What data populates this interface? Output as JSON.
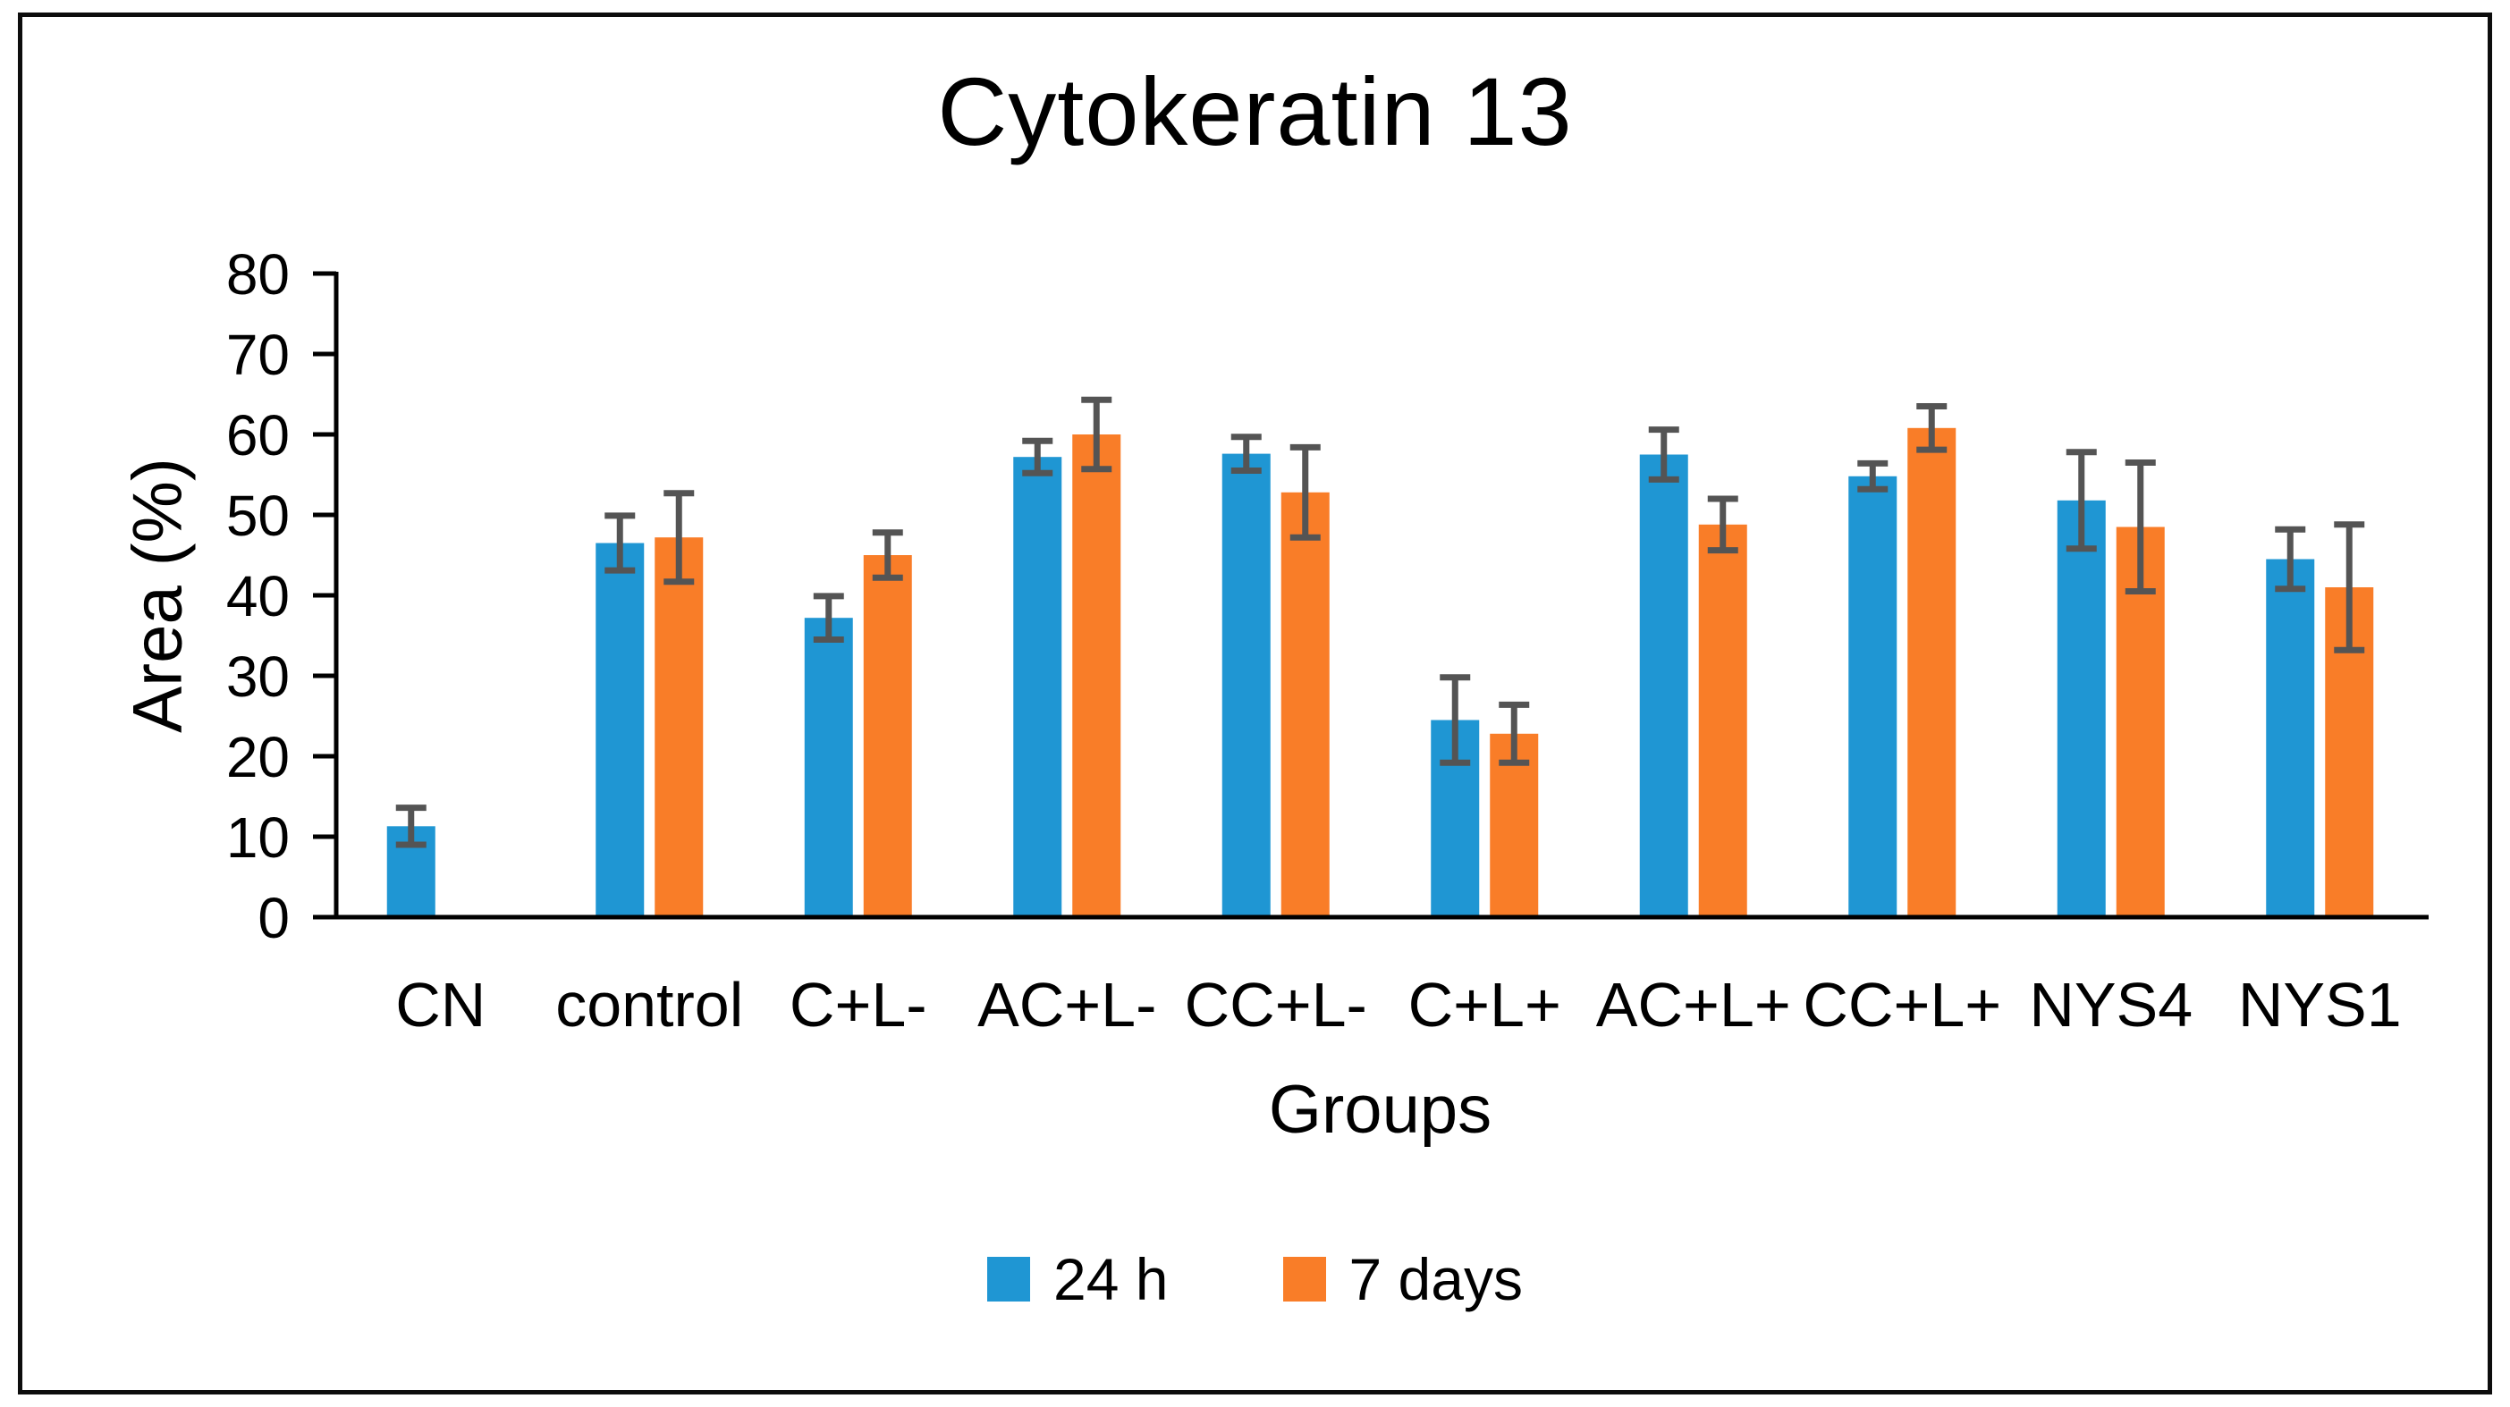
{
  "chart_data": {
    "type": "bar",
    "title": "Cytokeratin 13",
    "xlabel": "Groups",
    "ylabel": "Area (%)",
    "ylim": [
      0,
      80
    ],
    "ytick_step": 10,
    "grid": false,
    "legend_position": "bottom-center",
    "categories": [
      "CN",
      "control",
      "C+L-",
      "AC+L-",
      "CC+L-",
      "C+L+",
      "AC+L+",
      "CC+L+",
      "NYS4",
      "NYS1"
    ],
    "series": [
      {
        "name": "24 h",
        "color": "#1f96d3",
        "values": [
          11.3,
          46.5,
          37.2,
          57.2,
          57.6,
          24.5,
          57.5,
          54.8,
          51.8,
          44.5
        ],
        "errors": [
          2.3,
          3.4,
          2.7,
          2.0,
          2.1,
          5.3,
          3.1,
          1.6,
          6.0,
          3.7
        ]
      },
      {
        "name": "7 days",
        "color": "#f97d28",
        "values": [
          0,
          47.2,
          45.0,
          60.0,
          52.8,
          22.8,
          48.8,
          60.8,
          48.5,
          41.0
        ],
        "errors": [
          0,
          5.5,
          2.8,
          4.3,
          5.6,
          3.6,
          3.2,
          2.7,
          8.0,
          7.8
        ]
      }
    ],
    "error_bar_color": "#545454",
    "axis_color": "#000000"
  }
}
